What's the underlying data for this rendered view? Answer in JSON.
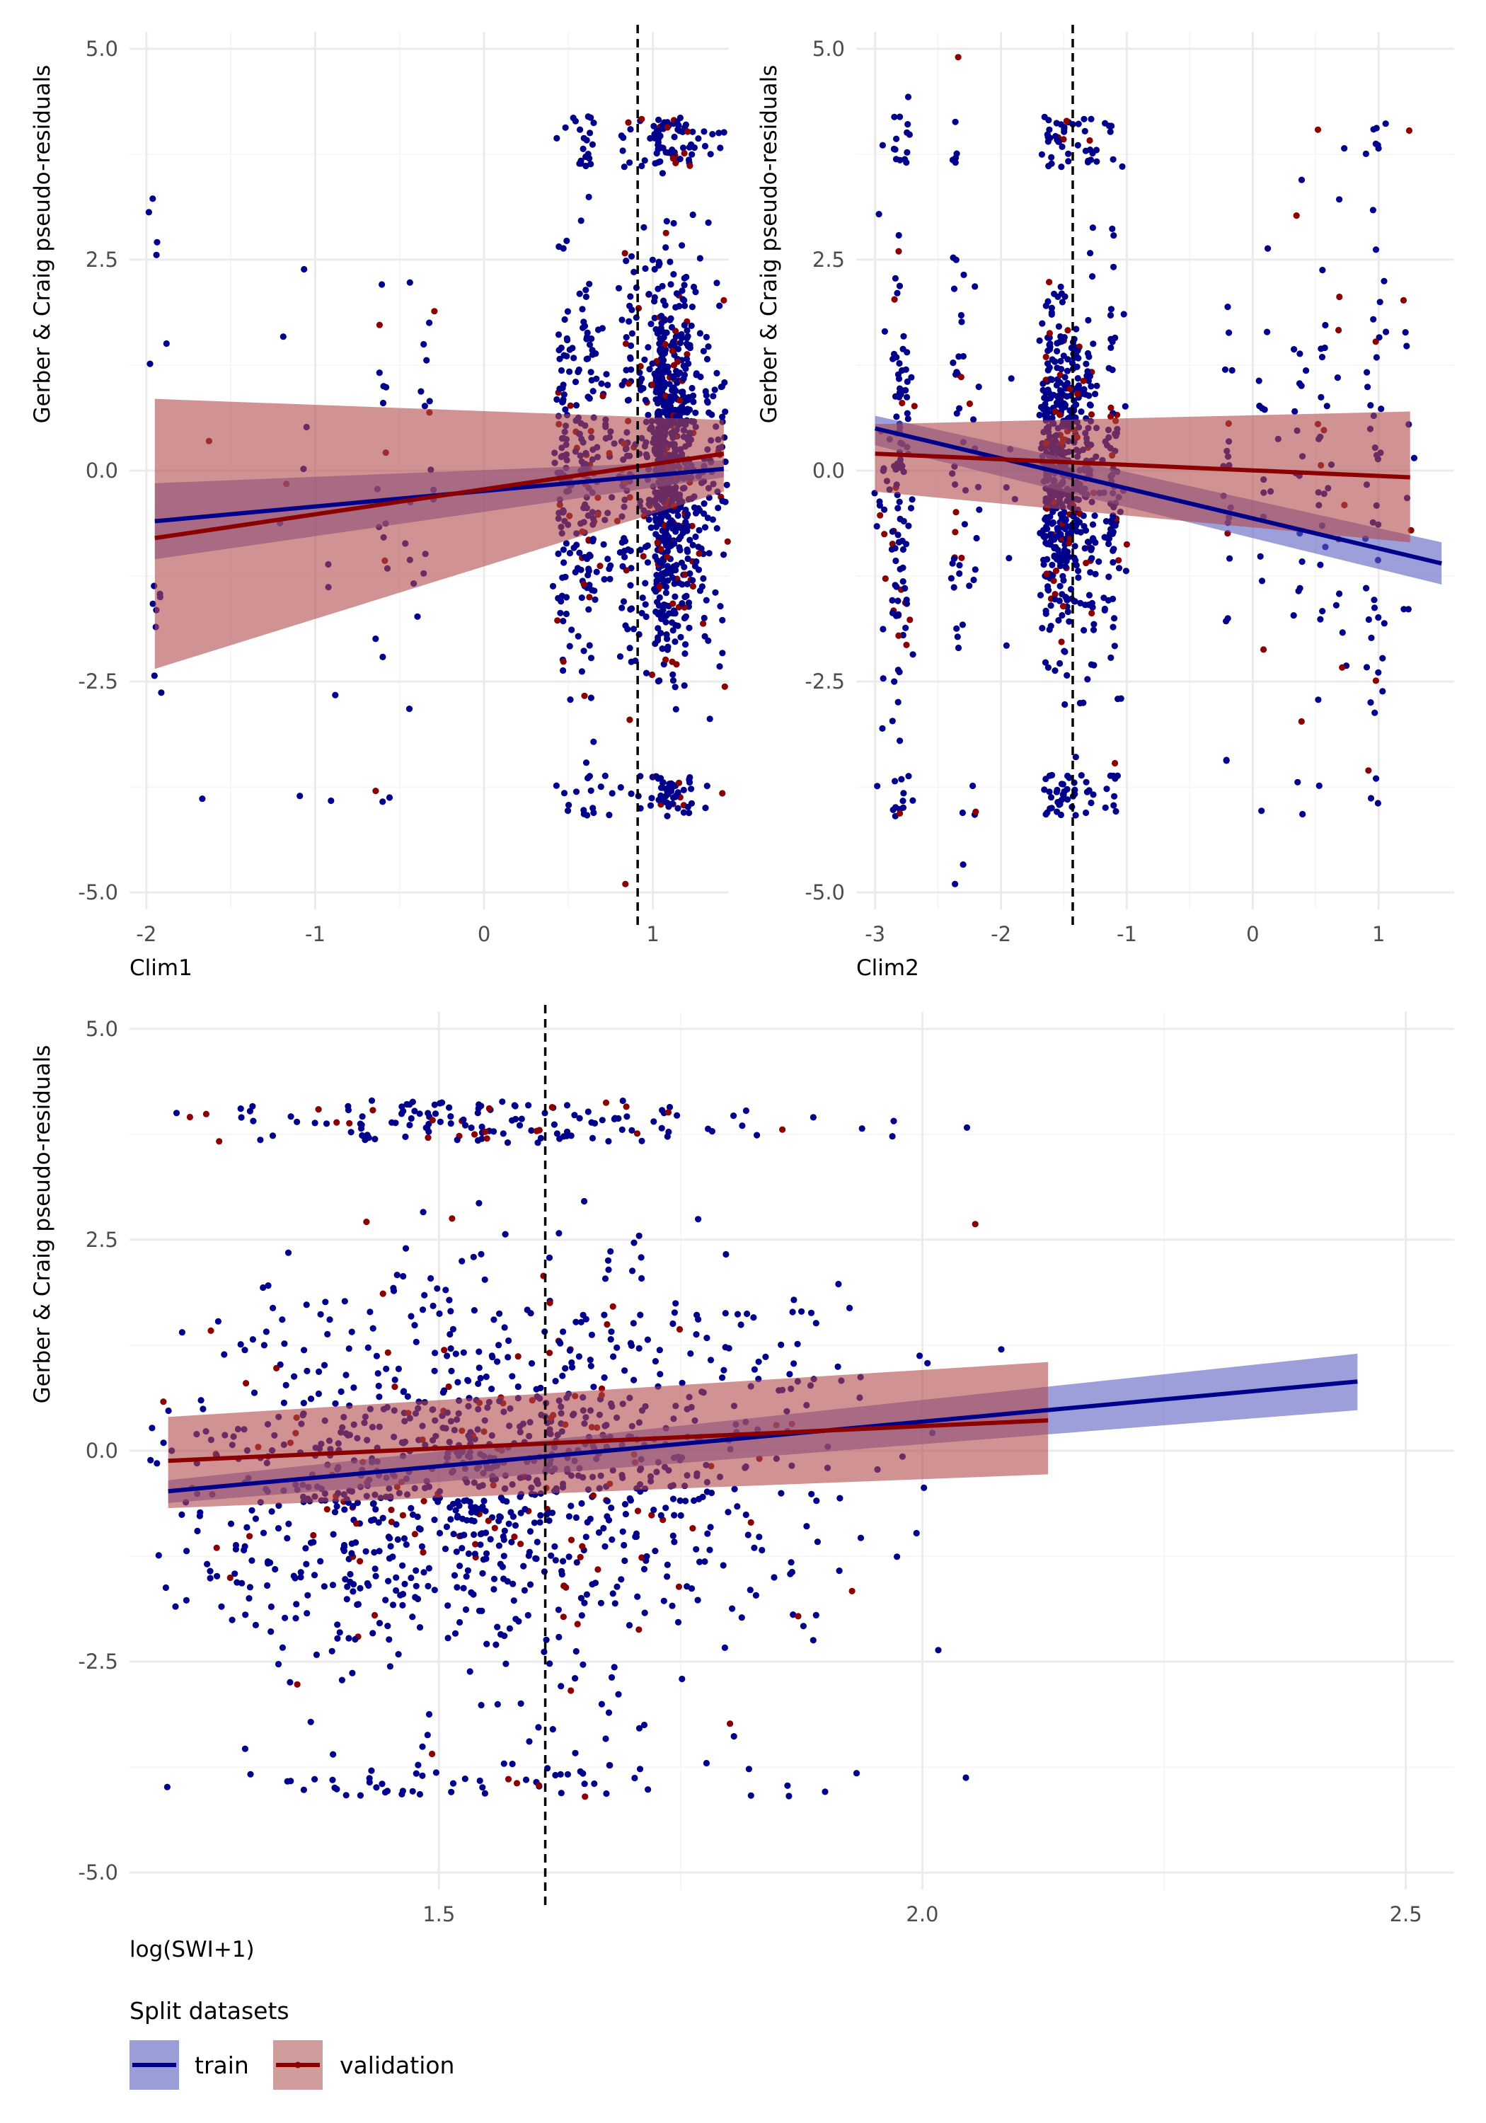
{
  "legend": {
    "title": "Split datasets",
    "items": [
      {
        "label": "train",
        "line_color": "#00008B",
        "fill_color": "#8c8fd0"
      },
      {
        "label": "validation",
        "line_color": "#8B0000",
        "fill_color": "#cc8a8a"
      }
    ]
  },
  "colors": {
    "train_point": "#00008B",
    "validation_point": "#8B0000",
    "train_line": "#00008B",
    "validation_line": "#8B0000",
    "train_band": "#5a5fc0",
    "validation_band": "#b04a4a",
    "vline": "#000000"
  },
  "chart_data": [
    {
      "type": "scatter",
      "id": "clim1",
      "title": "",
      "xlabel": "Clim1",
      "ylabel": "Gerber & Craig pseudo-residuals",
      "xlim": [
        -2.1,
        1.45
      ],
      "ylim": [
        -5.2,
        5.2
      ],
      "xticks": [
        -2,
        -1,
        0,
        1
      ],
      "xtick_labels": [
        "-2",
        "-1",
        "0",
        "1"
      ],
      "yticks": [
        -5,
        -2.5,
        0,
        2.5,
        5
      ],
      "ytick_labels": [
        "-5.0",
        "-2.5",
        "0.0",
        "2.5",
        "5.0"
      ],
      "vline_x": 0.91,
      "point_groups_x": [
        {
          "x": -1.95,
          "count": 10,
          "spread": 3.5
        },
        {
          "x": 0.47,
          "count": 90,
          "spread": 2.2
        },
        {
          "x": 0.62,
          "count": 110,
          "spread": 2.8
        },
        {
          "x": 0.88,
          "count": 80,
          "spread": 2.6
        },
        {
          "x": 1.05,
          "count": 420,
          "spread": 2.5
        },
        {
          "x": 1.25,
          "count": 160,
          "spread": 2.5
        },
        {
          "x": 1.4,
          "count": 40,
          "spread": 2.6
        }
      ],
      "series": [
        {
          "name": "train",
          "line": {
            "x": [
              -1.95,
              1.42
            ],
            "y": [
              -0.6,
              0.02
            ]
          },
          "band_upper": [
            -0.15,
            0.12
          ],
          "band_lower": [
            -1.05,
            -0.08
          ]
        },
        {
          "name": "validation",
          "line": {
            "x": [
              -1.95,
              1.42
            ],
            "y": [
              -0.8,
              0.2
            ]
          },
          "band_upper": [
            0.85,
            0.6
          ],
          "band_lower": [
            -2.35,
            -0.25
          ]
        }
      ]
    },
    {
      "type": "scatter",
      "id": "clim2",
      "title": "",
      "xlabel": "Clim2",
      "ylabel": "Gerber & Craig pseudo-residuals",
      "xlim": [
        -3.15,
        1.6
      ],
      "ylim": [
        -5.2,
        5.2
      ],
      "xticks": [
        -3,
        -2,
        -1,
        0,
        1
      ],
      "xtick_labels": [
        "-3",
        "-2",
        "-1",
        "0",
        "1"
      ],
      "yticks": [
        -5,
        -2.5,
        0,
        2.5,
        5
      ],
      "ytick_labels": [
        "-5.0",
        "-2.5",
        "0.0",
        "2.5",
        "5.0"
      ],
      "vline_x": -1.43,
      "series": [
        {
          "name": "train",
          "line": {
            "x": [
              -3.0,
              1.5
            ],
            "y": [
              0.5,
              -1.1
            ]
          },
          "band_upper": [
            0.65,
            -0.85
          ],
          "band_lower": [
            0.3,
            -1.35
          ]
        },
        {
          "name": "validation",
          "line": {
            "x": [
              -3.0,
              1.25
            ],
            "y": [
              0.2,
              -0.08
            ]
          },
          "band_upper": [
            0.55,
            0.7
          ],
          "band_lower": [
            -0.25,
            -0.85
          ]
        }
      ]
    },
    {
      "type": "scatter",
      "id": "swi",
      "title": "",
      "xlabel": "log(SWI+1)",
      "ylabel": "Gerber & Craig pseudo-residuals",
      "xlim": [
        1.18,
        2.55
      ],
      "ylim": [
        -5.2,
        5.2
      ],
      "xticks": [
        1.5,
        2.0,
        2.5
      ],
      "xtick_labels": [
        "1.5",
        "2.0",
        "2.5"
      ],
      "yticks": [
        -5,
        -2.5,
        0,
        2.5,
        5
      ],
      "ytick_labels": [
        "-5.0",
        "-2.5",
        "0.0",
        "2.5",
        "5.0"
      ],
      "vline_x": 1.61,
      "series": [
        {
          "name": "train",
          "line": {
            "x": [
              1.22,
              2.45
            ],
            "y": [
              -0.48,
              0.82
            ]
          },
          "band_upper": [
            -0.35,
            1.15
          ],
          "band_lower": [
            -0.62,
            0.48
          ]
        },
        {
          "name": "validation",
          "line": {
            "x": [
              1.22,
              2.13
            ],
            "y": [
              -0.12,
              0.36
            ]
          },
          "band_upper": [
            0.4,
            1.05
          ],
          "band_lower": [
            -0.68,
            -0.28
          ]
        }
      ]
    }
  ]
}
